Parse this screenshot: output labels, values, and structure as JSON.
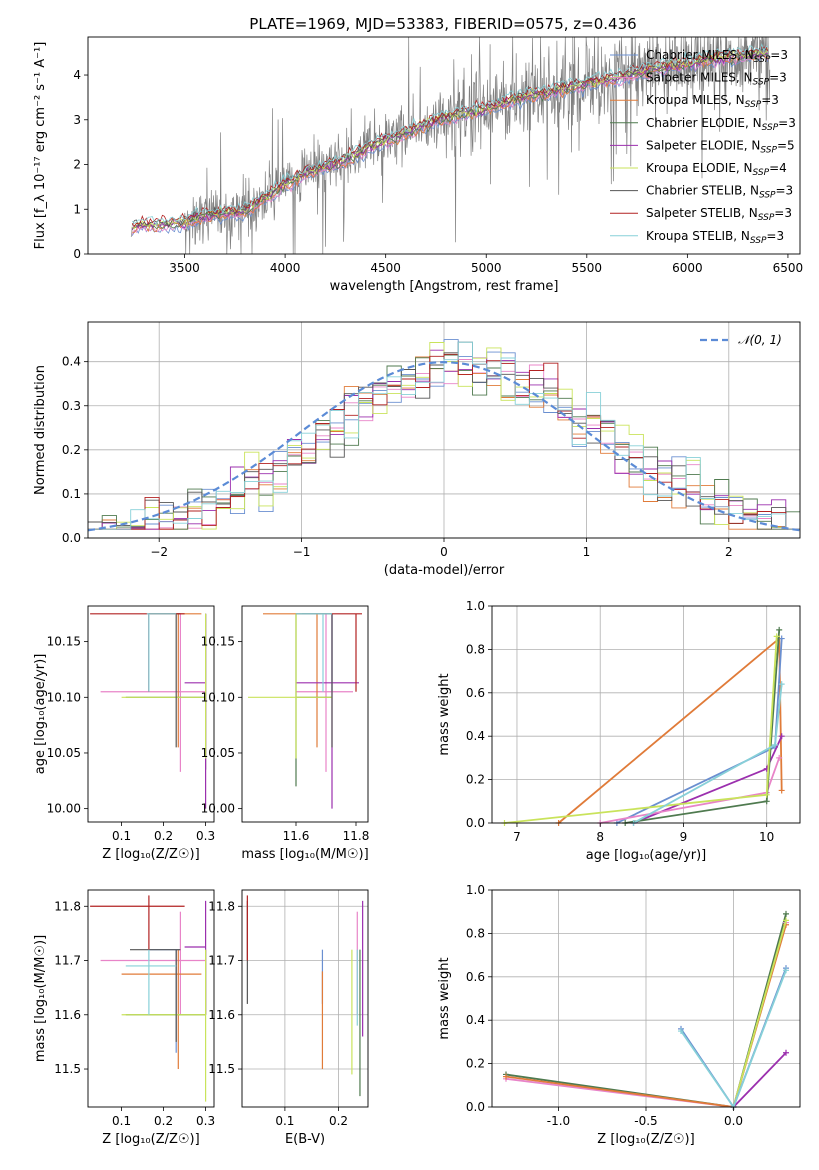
{
  "title": "PLATE=1969, MJD=53383, FIBERID=0575, z=0.436",
  "colors": {
    "Chabrier MILES": "#6a8fd0",
    "Salpeter MILES": "#e884c8",
    "Kroupa MILES": "#e07b39",
    "Chabrier ELODIE": "#4f7a4f",
    "Salpeter ELODIE": "#9b2fae",
    "Kroupa ELODIE": "#c9e35b",
    "Chabrier STELIB": "#555555",
    "Salpeter STELIB": "#b22222",
    "Kroupa STELIB": "#87d0d8"
  },
  "chart_data": [
    {
      "id": "spectrum",
      "type": "line",
      "xlabel": "wavelength [Angstrom, rest frame]",
      "ylabel": "Flux [f_λ 10⁻¹⁷ erg cm⁻² s⁻¹ A⁻¹]",
      "xlim": [
        3020,
        6560
      ],
      "ylim": [
        0,
        4.85
      ],
      "xticks": [
        3500,
        4000,
        4500,
        5000,
        5500,
        6000,
        6500
      ],
      "yticks": [
        0,
        1,
        2,
        3,
        4
      ],
      "grid": false,
      "legend_position": "top-right",
      "legend": [
        {
          "label": "Chabrier MILES, N",
          "sub": "SSP",
          "suffix": "=3"
        },
        {
          "label": "Salpeter MILES, N",
          "sub": "SSP",
          "suffix": "=3"
        },
        {
          "label": "Kroupa MILES, N",
          "sub": "SSP",
          "suffix": "=3"
        },
        {
          "label": "Chabrier ELODIE, N",
          "sub": "SSP",
          "suffix": "=3"
        },
        {
          "label": "Salpeter ELODIE, N",
          "sub": "SSP",
          "suffix": "=5"
        },
        {
          "label": "Kroupa ELODIE, N",
          "sub": "SSP",
          "suffix": "=4"
        },
        {
          "label": "Chabrier STELIB, N",
          "sub": "SSP",
          "suffix": "=3"
        },
        {
          "label": "Salpeter STELIB, N",
          "sub": "SSP",
          "suffix": "=3"
        },
        {
          "label": "Kroupa STELIB, N",
          "sub": "SSP",
          "suffix": "=3"
        }
      ],
      "continuum": [
        [
          3230,
          0.15
        ],
        [
          3240,
          0.55
        ],
        [
          3260,
          0.62
        ],
        [
          3300,
          0.65
        ],
        [
          3400,
          0.66
        ],
        [
          3500,
          0.7
        ],
        [
          3600,
          0.85
        ],
        [
          3700,
          0.92
        ],
        [
          3800,
          0.95
        ],
        [
          3900,
          1.25
        ],
        [
          4000,
          1.55
        ],
        [
          4100,
          1.8
        ],
        [
          4200,
          1.95
        ],
        [
          4300,
          2.1
        ],
        [
          4400,
          2.35
        ],
        [
          4500,
          2.55
        ],
        [
          4600,
          2.7
        ],
        [
          4700,
          2.9
        ],
        [
          4800,
          3.05
        ],
        [
          4900,
          3.15
        ],
        [
          5000,
          3.25
        ],
        [
          5100,
          3.4
        ],
        [
          5200,
          3.55
        ],
        [
          5300,
          3.6
        ],
        [
          5400,
          3.7
        ],
        [
          5500,
          3.8
        ],
        [
          5600,
          3.9
        ],
        [
          5700,
          4.0
        ],
        [
          5800,
          4.1
        ],
        [
          5900,
          4.2
        ],
        [
          6000,
          4.25
        ],
        [
          6100,
          4.35
        ],
        [
          6200,
          4.4
        ],
        [
          6300,
          4.45
        ],
        [
          6400,
          4.5
        ]
      ]
    },
    {
      "id": "residuals",
      "type": "histogram",
      "xlabel": "(data-model)/error",
      "ylabel": "Normed distribution",
      "xlim": [
        -2.5,
        2.5
      ],
      "ylim": [
        0,
        0.49
      ],
      "xticks": [
        -2,
        -1,
        0,
        1,
        2
      ],
      "yticks": [
        0.0,
        0.1,
        0.2,
        0.3,
        0.4
      ],
      "grid": true,
      "legend_position": "top-right",
      "reference_label": "𝒩(0, 1)",
      "bin_width": 0.1
    },
    {
      "id": "age-vs-Z",
      "type": "errorbar",
      "xlabel": "Z [log₁₀(Z/Z☉)]",
      "ylabel": "age  [log₁₀(age/yr)]",
      "xlim": [
        0.02,
        0.32
      ],
      "ylim": [
        9.988,
        10.182
      ],
      "xticks": [
        0.1,
        0.2,
        0.3
      ],
      "yticks": [
        10.0,
        10.05,
        10.1,
        10.15
      ],
      "grid": false,
      "points": [
        {
          "model": "Chabrier MILES",
          "x": 0.165,
          "y": 10.175,
          "xerr": [
            0.165,
            0.24
          ],
          "yerr": [
            10.105,
            10.175
          ]
        },
        {
          "model": "Salpeter MILES",
          "x": 0.24,
          "y": 10.105,
          "xerr": [
            0.05,
            0.3
          ],
          "yerr": [
            10.033,
            10.175
          ]
        },
        {
          "model": "Kroupa MILES",
          "x": 0.235,
          "y": 10.175,
          "xerr": [
            0.165,
            0.29
          ],
          "yerr": [
            10.055,
            10.175
          ]
        },
        {
          "model": "Chabrier ELODIE",
          "x": 0.3,
          "y": 10.1,
          "xerr": [
            0.11,
            0.3
          ],
          "yerr": [
            10.035,
            10.175
          ]
        },
        {
          "model": "Salpeter ELODIE",
          "x": 0.3,
          "y": 10.113,
          "xerr": [
            0.25,
            0.3
          ],
          "yerr": [
            10.0,
            10.175
          ]
        },
        {
          "model": "Kroupa ELODIE",
          "x": 0.3,
          "y": 10.1,
          "xerr": [
            0.1,
            0.3
          ],
          "yerr": [
            10.045,
            10.175
          ]
        },
        {
          "model": "Chabrier STELIB",
          "x": 0.23,
          "y": 10.175,
          "xerr": [
            0.165,
            0.24
          ],
          "yerr": [
            10.055,
            10.175
          ]
        },
        {
          "model": "Salpeter STELIB",
          "x": 0.165,
          "y": 10.175,
          "xerr": [
            0.025,
            0.25
          ],
          "yerr": [
            10.105,
            10.175
          ]
        },
        {
          "model": "Kroupa STELIB",
          "x": 0.165,
          "y": 10.175,
          "xerr": [
            0.16,
            0.23
          ],
          "yerr": [
            10.105,
            10.175
          ]
        }
      ]
    },
    {
      "id": "age-vs-mass",
      "type": "errorbar",
      "xlabel": "mass [log₁₀(M/M☉)]",
      "ylabel": "",
      "xlim": [
        11.42,
        11.84
      ],
      "ylim": [
        9.988,
        10.182
      ],
      "xticks": [
        11.6,
        11.8
      ],
      "yticks": [
        10.0,
        10.05,
        10.1,
        10.15
      ],
      "grid": false,
      "points": [
        {
          "model": "Chabrier MILES",
          "x": 11.72,
          "y": 10.175,
          "xerr": [
            11.62,
            11.72
          ],
          "yerr": [
            10.105,
            10.175
          ]
        },
        {
          "model": "Salpeter MILES",
          "x": 11.7,
          "y": 10.105,
          "xerr": [
            11.6,
            11.79
          ],
          "yerr": [
            10.033,
            10.175
          ]
        },
        {
          "model": "Kroupa MILES",
          "x": 11.67,
          "y": 10.175,
          "xerr": [
            11.49,
            11.72
          ],
          "yerr": [
            10.055,
            10.175
          ]
        },
        {
          "model": "Chabrier ELODIE",
          "x": 11.6,
          "y": 10.1,
          "xerr": [
            11.6,
            11.72
          ],
          "yerr": [
            10.02,
            10.175
          ]
        },
        {
          "model": "Salpeter ELODIE",
          "x": 11.72,
          "y": 10.113,
          "xerr": [
            11.6,
            11.81
          ],
          "yerr": [
            10.0,
            10.175
          ]
        },
        {
          "model": "Kroupa ELODIE",
          "x": 11.6,
          "y": 10.1,
          "xerr": [
            11.44,
            11.72
          ],
          "yerr": [
            10.045,
            10.175
          ]
        },
        {
          "model": "Chabrier STELIB",
          "x": 11.72,
          "y": 10.175,
          "xerr": [
            11.6,
            11.72
          ],
          "yerr": [
            10.055,
            10.175
          ]
        },
        {
          "model": "Salpeter STELIB",
          "x": 11.8,
          "y": 10.175,
          "xerr": [
            11.72,
            11.82
          ],
          "yerr": [
            10.105,
            10.175
          ]
        },
        {
          "model": "Kroupa STELIB",
          "x": 11.69,
          "y": 10.175,
          "xerr": [
            11.6,
            11.72
          ],
          "yerr": [
            10.105,
            10.175
          ]
        }
      ]
    },
    {
      "id": "mass-weight-vs-age",
      "type": "line",
      "xlabel": "age  [log₁₀(age/yr)]",
      "ylabel": "mass weight",
      "xlim": [
        6.7,
        10.4
      ],
      "ylim": [
        0,
        1.0
      ],
      "xticks": [
        7,
        8,
        9,
        10
      ],
      "yticks": [
        0.0,
        0.2,
        0.4,
        0.6,
        0.8,
        1.0
      ],
      "grid": true,
      "series": [
        {
          "model": "Kroupa MILES",
          "x": [
            7.5,
            10.15,
            10.18
          ],
          "y": [
            0.0,
            0.85,
            0.15
          ]
        },
        {
          "model": "Chabrier MILES",
          "x": [
            8.2,
            10.1,
            10.18
          ],
          "y": [
            0.0,
            0.35,
            0.85
          ]
        },
        {
          "model": "Salpeter ELODIE",
          "x": [
            8.4,
            10.0,
            10.18
          ],
          "y": [
            0.0,
            0.25,
            0.4
          ]
        },
        {
          "model": "Salpeter MILES",
          "x": [
            8.0,
            10.0,
            10.15
          ],
          "y": [
            0.0,
            0.14,
            0.3
          ]
        },
        {
          "model": "Chabrier ELODIE",
          "x": [
            8.3,
            10.0,
            10.15
          ],
          "y": [
            0.0,
            0.1,
            0.89
          ]
        },
        {
          "model": "Kroupa ELODIE",
          "x": [
            6.85,
            10.0,
            10.12
          ],
          "y": [
            0.0,
            0.13,
            0.86
          ]
        },
        {
          "model": "Kroupa STELIB",
          "x": [
            8.4,
            10.1,
            10.18
          ],
          "y": [
            0.0,
            0.36,
            0.64
          ]
        }
      ]
    },
    {
      "id": "mass-vs-Z",
      "type": "errorbar",
      "xlabel": "Z [log₁₀(Z/Z☉)]",
      "ylabel": "mass [log₁₀(M/M☉)]",
      "xlim": [
        0.02,
        0.32
      ],
      "ylim": [
        11.43,
        11.83
      ],
      "xticks": [
        0.1,
        0.2,
        0.3
      ],
      "yticks": [
        11.5,
        11.6,
        11.7,
        11.8
      ],
      "grid": false,
      "points": [
        {
          "model": "Chabrier MILES",
          "x": 0.23,
          "y": 11.72,
          "xerr": [
            0.165,
            0.24
          ],
          "yerr": [
            11.53,
            11.72
          ]
        },
        {
          "model": "Salpeter MILES",
          "x": 0.24,
          "y": 11.7,
          "xerr": [
            0.05,
            0.3
          ],
          "yerr": [
            11.6,
            11.79
          ]
        },
        {
          "model": "Kroupa MILES",
          "x": 0.235,
          "y": 11.675,
          "xerr": [
            0.1,
            0.29
          ],
          "yerr": [
            11.5,
            11.72
          ]
        },
        {
          "model": "Chabrier ELODIE",
          "x": 0.3,
          "y": 11.6,
          "xerr": [
            0.11,
            0.3
          ],
          "yerr": [
            11.6,
            11.72
          ]
        },
        {
          "model": "Salpeter ELODIE",
          "x": 0.3,
          "y": 11.725,
          "xerr": [
            0.25,
            0.3
          ],
          "yerr": [
            11.6,
            11.81
          ]
        },
        {
          "model": "Kroupa ELODIE",
          "x": 0.3,
          "y": 11.6,
          "xerr": [
            0.1,
            0.3
          ],
          "yerr": [
            11.44,
            11.72
          ]
        },
        {
          "model": "Chabrier STELIB",
          "x": 0.23,
          "y": 11.72,
          "xerr": [
            0.12,
            0.24
          ],
          "yerr": [
            11.55,
            11.72
          ]
        },
        {
          "model": "Salpeter STELIB",
          "x": 0.165,
          "y": 11.8,
          "xerr": [
            0.025,
            0.25
          ],
          "yerr": [
            11.72,
            11.82
          ]
        },
        {
          "model": "Kroupa STELIB",
          "x": 0.165,
          "y": 11.69,
          "xerr": [
            0.11,
            0.23
          ],
          "yerr": [
            11.6,
            11.72
          ]
        }
      ]
    },
    {
      "id": "mass-vs-EBV",
      "type": "errorbar",
      "xlabel": "E(B-V)",
      "ylabel": "",
      "xlim": [
        0.02,
        0.255
      ],
      "ylim": [
        11.43,
        11.83
      ],
      "xticks": [
        0.1,
        0.2
      ],
      "yticks": [
        11.5,
        11.6,
        11.7,
        11.8
      ],
      "grid": true,
      "points": [
        {
          "model": "Chabrier MILES",
          "x": 0.17,
          "y": 11.68,
          "yerr": [
            11.62,
            11.72
          ]
        },
        {
          "model": "Salpeter MILES",
          "x": 0.235,
          "y": 11.7,
          "yerr": [
            11.6,
            11.79
          ]
        },
        {
          "model": "Kroupa MILES",
          "x": 0.17,
          "y": 11.6,
          "yerr": [
            11.5,
            11.68
          ]
        },
        {
          "model": "Chabrier ELODIE",
          "x": 0.24,
          "y": 11.6,
          "yerr": [
            11.45,
            11.72
          ]
        },
        {
          "model": "Salpeter ELODIE",
          "x": 0.245,
          "y": 11.7,
          "yerr": [
            11.56,
            11.81
          ]
        },
        {
          "model": "Kroupa ELODIE",
          "x": 0.225,
          "y": 11.55,
          "yerr": [
            11.49,
            11.72
          ]
        },
        {
          "model": "Chabrier STELIB",
          "x": 0.03,
          "y": 11.7,
          "yerr": [
            11.62,
            11.81
          ]
        },
        {
          "model": "Salpeter STELIB",
          "x": 0.03,
          "y": 11.75,
          "yerr": [
            11.7,
            11.82
          ]
        },
        {
          "model": "Kroupa STELIB",
          "x": 0.235,
          "y": 11.65,
          "yerr": [
            11.58,
            11.72
          ]
        }
      ]
    },
    {
      "id": "mass-weight-vs-Z",
      "type": "line",
      "xlabel": "Z [log₁₀(Z/Z☉)]",
      "ylabel": "mass weight",
      "xlim": [
        -1.38,
        0.38
      ],
      "ylim": [
        0,
        1.0
      ],
      "xticks": [
        -1.0,
        -0.5,
        0.0
      ],
      "yticks": [
        0.0,
        0.2,
        0.4,
        0.6,
        0.8,
        1.0
      ],
      "grid": true,
      "series": [
        {
          "model": "Chabrier ELODIE",
          "x": [
            -1.3,
            0.0,
            0.3
          ],
          "y": [
            0.15,
            0.0,
            0.89
          ]
        },
        {
          "model": "Salpeter MILES",
          "x": [
            -1.3,
            0.0,
            0.3
          ],
          "y": [
            0.13,
            0.0,
            0.85
          ]
        },
        {
          "model": "Kroupa MILES",
          "x": [
            -1.3,
            0.0,
            0.3
          ],
          "y": [
            0.14,
            0.0,
            0.84
          ]
        },
        {
          "model": "Kroupa ELODIE",
          "x": [
            0.0,
            0.3
          ],
          "y": [
            0.0,
            0.86
          ]
        },
        {
          "model": "Salpeter ELODIE",
          "x": [
            0.0,
            0.3
          ],
          "y": [
            0.0,
            0.25
          ]
        },
        {
          "model": "Chabrier MILES",
          "x": [
            -0.3,
            0.0,
            0.3
          ],
          "y": [
            0.36,
            0.0,
            0.64
          ]
        },
        {
          "model": "Kroupa STELIB",
          "x": [
            -0.3,
            0.0,
            0.3
          ],
          "y": [
            0.35,
            0.0,
            0.63
          ]
        }
      ]
    }
  ]
}
